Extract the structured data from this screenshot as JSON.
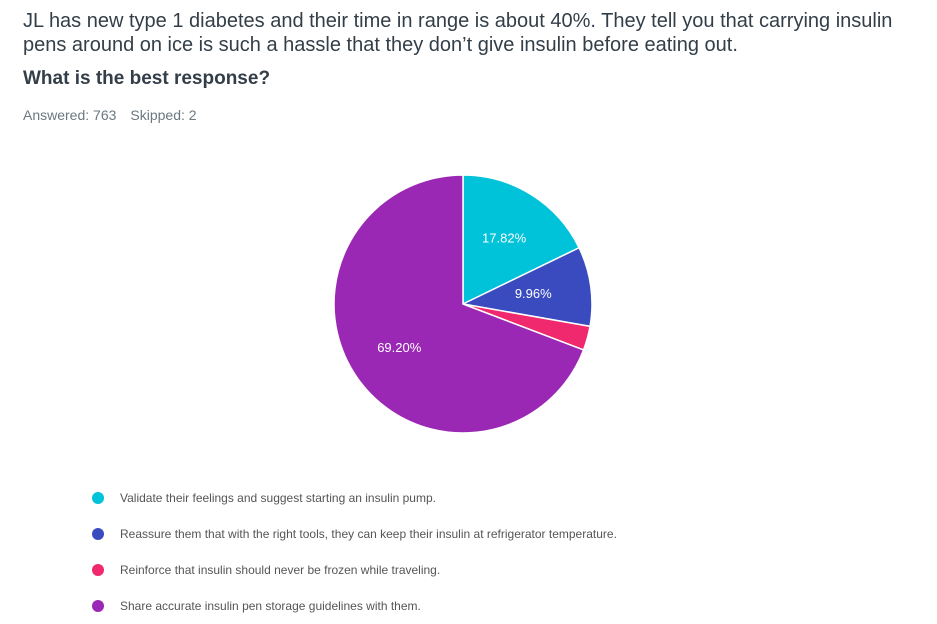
{
  "question": {
    "text": "JL has new type 1 diabetes and their time in range is about 40%.  They tell you that carrying insulin pens around on ice is such a hassle that they don’t give insulin before eating out.",
    "prompt": "What is the best response?"
  },
  "stats": {
    "answered": "Answered: 763",
    "skipped": "Skipped: 2"
  },
  "chart_data": {
    "type": "pie",
    "categories": [
      "Validate their feelings and suggest starting an insulin pump.",
      "Reassure them that with the right tools, they can keep their insulin at refrigerator temperature.",
      "Reinforce that insulin should never be frozen while traveling.",
      "Share accurate insulin pen storage guidelines with them."
    ],
    "values": [
      17.82,
      9.96,
      3.02,
      69.2
    ],
    "data_labels": [
      "17.82%",
      "9.96%",
      "",
      "69.20%"
    ],
    "colors": [
      "#00c2d9",
      "#3a4bbf",
      "#f0286d",
      "#9b27b5"
    ],
    "legend_position": "bottom"
  }
}
